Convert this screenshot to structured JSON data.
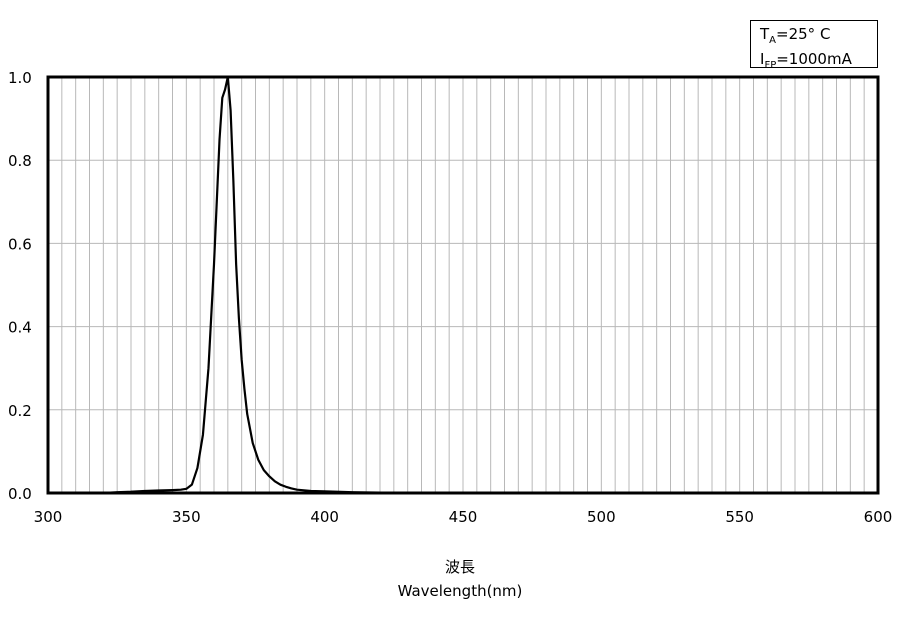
{
  "chart_data": {
    "type": "line",
    "xlim": [
      300,
      600
    ],
    "ylim": [
      0,
      1
    ],
    "x_ticks": [
      "300",
      "350",
      "400",
      "450",
      "500",
      "550",
      "600"
    ],
    "x_tick_values": [
      300,
      350,
      400,
      450,
      500,
      550,
      600
    ],
    "y_ticks": [
      "0.0",
      "0.2",
      "0.4",
      "0.6",
      "0.8",
      "1.0"
    ],
    "y_tick_values": [
      0,
      0.2,
      0.4,
      0.6,
      0.8,
      1.0
    ],
    "x_minor_step": 5,
    "grid": true,
    "xlabel_jp": "波長",
    "xlabel": "Wavelength(nm)",
    "ylabel": "",
    "series": [
      {
        "x": [
          300,
          310,
          320,
          325,
          330,
          335,
          340,
          345,
          348,
          350,
          352,
          354,
          356,
          358,
          360,
          362,
          363,
          364,
          365,
          366,
          367,
          368,
          369,
          370,
          371,
          372,
          374,
          376,
          378,
          380,
          382,
          384,
          386,
          388,
          390,
          395,
          400,
          410,
          420,
          430,
          450,
          500,
          550,
          600
        ],
        "y": [
          0,
          0,
          0,
          0.002,
          0.003,
          0.005,
          0.006,
          0.007,
          0.008,
          0.01,
          0.02,
          0.06,
          0.14,
          0.3,
          0.55,
          0.85,
          0.95,
          0.97,
          1.0,
          0.92,
          0.75,
          0.55,
          0.42,
          0.32,
          0.25,
          0.19,
          0.12,
          0.08,
          0.055,
          0.04,
          0.028,
          0.02,
          0.015,
          0.011,
          0.008,
          0.005,
          0.004,
          0.002,
          0.001,
          0.001,
          0,
          0,
          0,
          0
        ],
        "color": "#000000"
      }
    ]
  },
  "legend": {
    "line1_main": "T",
    "line1_sub": "A",
    "line1_rest": "=25°  C",
    "line2_main": "I",
    "line2_sub": "FP",
    "line2_rest": "=1000mA"
  }
}
